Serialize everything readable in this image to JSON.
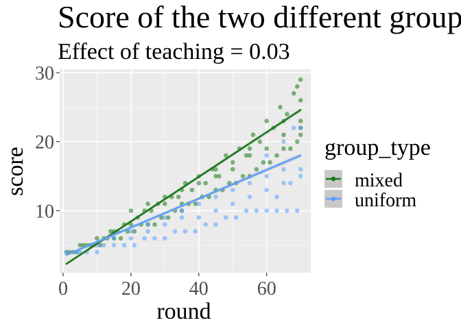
{
  "chart_data": {
    "type": "scatter",
    "title": "Score of the two different groups",
    "subtitle": "Effect of teaching = 0.03",
    "xlabel": "round",
    "ylabel": "score",
    "xlim": [
      -1,
      73
    ],
    "ylim": [
      1,
      30.5
    ],
    "x_ticks": [
      0,
      20,
      40,
      60
    ],
    "x_tick_labels": [
      "0",
      "20",
      "40",
      "60"
    ],
    "y_ticks": [
      10,
      20,
      30
    ],
    "y_tick_labels": [
      "10",
      "20",
      "30"
    ],
    "grid": true,
    "legend": {
      "title": "group_type",
      "position": "right",
      "entries": [
        "mixed",
        "uniform"
      ]
    },
    "series": [
      {
        "name": "mixed",
        "color": "#1a7a1a",
        "points": [
          [
            1,
            4
          ],
          [
            3,
            4
          ],
          [
            5,
            5
          ],
          [
            7,
            5
          ],
          [
            9,
            5
          ],
          [
            11,
            5
          ],
          [
            13,
            6
          ],
          [
            15,
            6
          ],
          [
            17,
            6
          ],
          [
            19,
            7
          ],
          [
            21,
            7
          ],
          [
            23,
            8
          ],
          [
            25,
            8
          ],
          [
            27,
            8
          ],
          [
            29,
            9
          ],
          [
            31,
            9
          ],
          [
            33,
            10
          ],
          [
            35,
            10
          ],
          [
            37,
            11
          ],
          [
            39,
            11
          ],
          [
            41,
            12
          ],
          [
            43,
            12
          ],
          [
            45,
            13
          ],
          [
            47,
            13
          ],
          [
            49,
            14
          ],
          [
            51,
            14
          ],
          [
            53,
            15
          ],
          [
            55,
            15
          ],
          [
            57,
            16
          ],
          [
            59,
            17
          ],
          [
            61,
            17
          ],
          [
            63,
            18
          ],
          [
            65,
            19
          ],
          [
            67,
            19
          ],
          [
            69,
            20
          ],
          [
            70,
            21
          ],
          [
            2,
            4
          ],
          [
            6,
            5
          ],
          [
            10,
            6
          ],
          [
            14,
            7
          ],
          [
            18,
            8
          ],
          [
            22,
            9
          ],
          [
            26,
            10
          ],
          [
            30,
            11
          ],
          [
            34,
            12
          ],
          [
            38,
            13
          ],
          [
            42,
            14
          ],
          [
            46,
            15
          ],
          [
            50,
            17
          ],
          [
            54,
            18
          ],
          [
            58,
            20
          ],
          [
            62,
            22
          ],
          [
            66,
            24
          ],
          [
            70,
            26
          ],
          [
            4,
            4
          ],
          [
            8,
            5
          ],
          [
            12,
            6
          ],
          [
            16,
            7
          ],
          [
            20,
            8
          ],
          [
            24,
            10
          ],
          [
            28,
            11
          ],
          [
            32,
            12
          ],
          [
            36,
            14
          ],
          [
            40,
            15
          ],
          [
            44,
            16
          ],
          [
            48,
            18
          ],
          [
            52,
            19
          ],
          [
            56,
            21
          ],
          [
            60,
            23
          ],
          [
            64,
            25
          ],
          [
            68,
            27
          ],
          [
            70,
            29
          ],
          [
            20,
            10
          ],
          [
            25,
            11
          ],
          [
            30,
            12
          ],
          [
            35,
            13
          ],
          [
            40,
            14
          ],
          [
            45,
            15
          ],
          [
            50,
            16
          ],
          [
            55,
            18
          ],
          [
            60,
            19
          ],
          [
            65,
            21
          ],
          [
            70,
            23
          ],
          [
            15,
            7
          ],
          [
            35,
            11
          ],
          [
            45,
            16
          ],
          [
            55,
            19
          ],
          [
            65,
            23
          ],
          [
            69,
            28
          ],
          [
            70,
            22
          ]
        ],
        "fit": {
          "x": [
            1,
            70
          ],
          "y": [
            2.3,
            24.6
          ]
        }
      },
      {
        "name": "uniform",
        "color": "#5aa0ff",
        "points": [
          [
            1,
            4
          ],
          [
            4,
            4
          ],
          [
            7,
            4
          ],
          [
            10,
            4
          ],
          [
            12,
            5
          ],
          [
            15,
            5
          ],
          [
            18,
            5
          ],
          [
            21,
            5
          ],
          [
            24,
            6
          ],
          [
            27,
            6
          ],
          [
            30,
            6
          ],
          [
            33,
            7
          ],
          [
            36,
            7
          ],
          [
            39,
            7
          ],
          [
            42,
            8
          ],
          [
            45,
            8
          ],
          [
            48,
            9
          ],
          [
            51,
            9
          ],
          [
            54,
            10
          ],
          [
            57,
            10
          ],
          [
            60,
            10
          ],
          [
            63,
            10
          ],
          [
            66,
            10
          ],
          [
            69,
            10
          ],
          [
            5,
            4
          ],
          [
            10,
            5
          ],
          [
            15,
            6
          ],
          [
            20,
            6
          ],
          [
            25,
            7
          ],
          [
            30,
            8
          ],
          [
            35,
            9
          ],
          [
            40,
            9
          ],
          [
            45,
            10
          ],
          [
            50,
            11
          ],
          [
            55,
            12
          ],
          [
            60,
            13
          ],
          [
            65,
            14
          ],
          [
            70,
            15
          ],
          [
            20,
            7
          ],
          [
            25,
            8
          ],
          [
            30,
            9
          ],
          [
            35,
            10
          ],
          [
            40,
            11
          ],
          [
            45,
            12
          ],
          [
            50,
            13
          ],
          [
            55,
            14
          ],
          [
            60,
            15
          ],
          [
            65,
            16
          ],
          [
            70,
            16
          ],
          [
            60,
            18
          ],
          [
            65,
            20
          ],
          [
            68,
            22
          ],
          [
            70,
            22
          ],
          [
            63,
            12
          ],
          [
            67,
            14
          ]
        ],
        "fit": {
          "x": [
            1,
            70
          ],
          "y": [
            3.6,
            18.0
          ]
        }
      }
    ]
  }
}
